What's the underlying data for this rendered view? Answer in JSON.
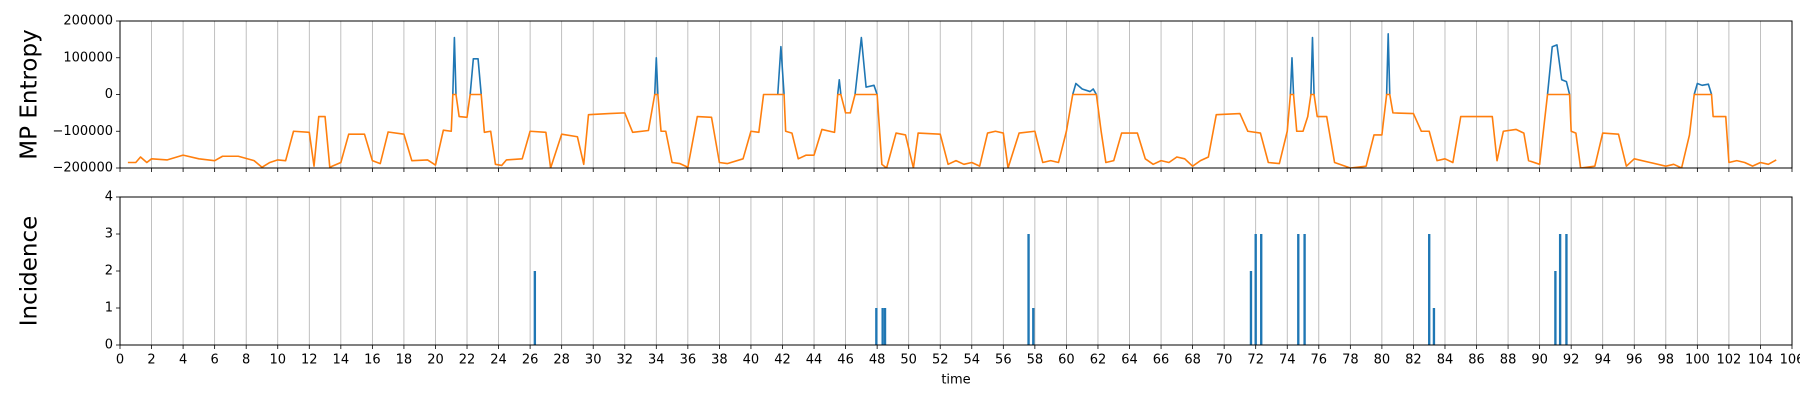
{
  "chart_data": [
    {
      "type": "line",
      "ylabel": "MP Entropy",
      "grid": "x",
      "xlim": [
        0,
        106
      ],
      "xticks": [
        0,
        2,
        4,
        6,
        8,
        10,
        12,
        14,
        16,
        18,
        20,
        22,
        24,
        26,
        28,
        30,
        32,
        34,
        36,
        38,
        40,
        42,
        44,
        46,
        48,
        50,
        52,
        54,
        56,
        58,
        60,
        62,
        64,
        66,
        68,
        70,
        72,
        74,
        76,
        78,
        80,
        82,
        84,
        86,
        88,
        90,
        92,
        94,
        96,
        98,
        100,
        102,
        104,
        106
      ],
      "ylim": [
        -200000,
        200000
      ],
      "yticks": [
        {
          "value": -200000,
          "label": "−200000"
        },
        {
          "value": -100000,
          "label": "−100000"
        },
        0,
        100000,
        200000
      ],
      "x": [
        0.5,
        1,
        1.3,
        1.7,
        2,
        3,
        4,
        5,
        6,
        6.5,
        7.5,
        8.5,
        9,
        9.5,
        10,
        10.5,
        11,
        12,
        12.3,
        12.6,
        13,
        13.3,
        14,
        14.5,
        15.5,
        16,
        16.5,
        17,
        18,
        18.5,
        19.5,
        20,
        20.5,
        21,
        21.1,
        21.2,
        21.3,
        21.5,
        22,
        22.2,
        22.4,
        22.7,
        22.9,
        23.1,
        23.5,
        23.8,
        24.2,
        24.5,
        25.5,
        26,
        27,
        27.3,
        28,
        29,
        29.4,
        29.7,
        31,
        32,
        32.5,
        33.5,
        33.9,
        34,
        34.1,
        34.3,
        34.6,
        35,
        35.5,
        36,
        36.6,
        37.5,
        38,
        38.5,
        39.5,
        40,
        40.5,
        40.8,
        41.5,
        41.7,
        41.9,
        42.1,
        42.2,
        42.6,
        43,
        43.5,
        44,
        44.5,
        45.3,
        45.5,
        45.6,
        45.7,
        46,
        46.3,
        46.6,
        47,
        47.3,
        47.8,
        48,
        48.3,
        48.6,
        49.2,
        49.8,
        50.3,
        50.6,
        52,
        52.5,
        53,
        53.5,
        54,
        54.5,
        55,
        55.5,
        56,
        56.3,
        57,
        58,
        58.5,
        59,
        59.5,
        60,
        60.4,
        60.6,
        61,
        61.5,
        61.7,
        61.9,
        62.2,
        62.5,
        63,
        63.5,
        64.5,
        65,
        65.5,
        66,
        66.5,
        67,
        67.5,
        68,
        68.5,
        69,
        69.5,
        71,
        71.5,
        72.3,
        72.8,
        73.5,
        74,
        74.2,
        74.3,
        74.4,
        74.6,
        75,
        75.3,
        75.5,
        75.6,
        75.7,
        75.9,
        76.5,
        77,
        78,
        79,
        79.5,
        80,
        80.3,
        80.4,
        80.5,
        80.7,
        82,
        82.5,
        83,
        83.5,
        84,
        84.5,
        85,
        87,
        87.3,
        87.7,
        88.5,
        89,
        89.3,
        90,
        90.5,
        90.8,
        91.1,
        91.4,
        91.7,
        91.9,
        92,
        92.3,
        92.6,
        93.5,
        94,
        95,
        95.5,
        96,
        97,
        98,
        98.5,
        99,
        99.5,
        99.8,
        100,
        100.3,
        100.7,
        100.9,
        101,
        101.8,
        102,
        102.5,
        103,
        103.5,
        104,
        104.5,
        105
      ],
      "series": [
        {
          "color": "#1f77b4",
          "values": [
            null,
            null,
            null,
            null,
            null,
            null,
            null,
            null,
            null,
            null,
            null,
            null,
            null,
            null,
            null,
            null,
            null,
            null,
            null,
            null,
            null,
            null,
            null,
            null,
            null,
            null,
            null,
            null,
            null,
            null,
            null,
            null,
            null,
            null,
            0,
            155000,
            0,
            null,
            null,
            0,
            97000,
            97000,
            0,
            null,
            null,
            null,
            null,
            null,
            null,
            null,
            null,
            null,
            null,
            null,
            null,
            null,
            null,
            null,
            null,
            null,
            0,
            100000,
            0,
            null,
            null,
            null,
            null,
            null,
            null,
            null,
            null,
            null,
            null,
            null,
            null,
            null,
            null,
            0,
            130000,
            0,
            null,
            null,
            null,
            null,
            null,
            null,
            null,
            0,
            40000,
            0,
            null,
            null,
            0,
            155000,
            20000,
            25000,
            0,
            null,
            null,
            null,
            null,
            null,
            null,
            null,
            null,
            null,
            null,
            null,
            null,
            null,
            null,
            null,
            null,
            null,
            null,
            null,
            null,
            null,
            null,
            0,
            30000,
            15000,
            8000,
            15000,
            0,
            null,
            null,
            null,
            null,
            null,
            null,
            null,
            null,
            null,
            null,
            null,
            null,
            null,
            null,
            null,
            null,
            null,
            null,
            null,
            null,
            null,
            0,
            100000,
            0,
            null,
            null,
            null,
            0,
            155000,
            0,
            null,
            null,
            null,
            null,
            null,
            null,
            null,
            0,
            165000,
            0,
            null,
            null,
            null,
            null,
            null,
            null,
            null,
            null,
            null,
            null,
            null,
            null,
            null,
            null,
            null,
            0,
            130000,
            135000,
            40000,
            35000,
            0,
            null,
            null,
            null,
            null,
            null,
            null,
            null,
            null,
            null,
            null,
            null,
            null,
            null,
            0,
            30000,
            25000,
            28000,
            0,
            null,
            null,
            null,
            null,
            null,
            null,
            null,
            null,
            null
          ]
        },
        {
          "color": "#ff7f0e",
          "values": [
            -185000,
            -185000,
            -170000,
            -185000,
            -175000,
            -178000,
            -165000,
            -175000,
            -180000,
            -168000,
            -168000,
            -180000,
            -198000,
            -185000,
            -178000,
            -180000,
            -100000,
            -103000,
            -195000,
            -60000,
            -60000,
            -198000,
            -185000,
            -108000,
            -108000,
            -180000,
            -188000,
            -102000,
            -108000,
            -180000,
            -178000,
            -192000,
            -97000,
            -100000,
            0,
            0,
            0,
            -60000,
            -62000,
            0,
            0,
            0,
            0,
            -103000,
            -100000,
            -190000,
            -193000,
            -178000,
            -175000,
            -100000,
            -103000,
            -200000,
            -108000,
            -115000,
            -190000,
            -55000,
            -52000,
            -50000,
            -103000,
            -98000,
            0,
            0,
            0,
            -100000,
            -100000,
            -185000,
            -188000,
            -198000,
            -60000,
            -62000,
            -185000,
            -188000,
            -175000,
            -100000,
            -103000,
            0,
            0,
            0,
            0,
            0,
            -100000,
            -105000,
            -175000,
            -165000,
            -165000,
            -95000,
            -103000,
            0,
            0,
            0,
            -50000,
            -50000,
            0,
            0,
            0,
            0,
            0,
            -190000,
            -200000,
            -105000,
            -110000,
            -200000,
            -105000,
            -108000,
            -190000,
            -180000,
            -190000,
            -185000,
            -195000,
            -105000,
            -100000,
            -105000,
            -200000,
            -105000,
            -100000,
            -185000,
            -180000,
            -185000,
            -100000,
            0,
            0,
            0,
            0,
            0,
            0,
            -100000,
            -185000,
            -180000,
            -105000,
            -105000,
            -175000,
            -190000,
            -180000,
            -185000,
            -170000,
            -175000,
            -195000,
            -180000,
            -170000,
            -55000,
            -52000,
            -100000,
            -105000,
            -185000,
            -188000,
            -100000,
            0,
            0,
            0,
            -100000,
            -100000,
            -60000,
            0,
            0,
            0,
            -60000,
            -60000,
            -185000,
            -200000,
            -195000,
            -110000,
            -110000,
            0,
            0,
            0,
            -50000,
            -52000,
            -100000,
            -100000,
            -180000,
            -175000,
            -185000,
            -60000,
            -60000,
            -180000,
            -100000,
            -95000,
            -105000,
            -180000,
            -190000,
            0,
            0,
            0,
            0,
            0,
            0,
            -100000,
            -105000,
            -200000,
            -195000,
            -105000,
            -108000,
            -195000,
            -175000,
            -185000,
            -195000,
            -190000,
            -200000,
            -110000,
            0,
            0,
            0,
            0,
            0,
            -60000,
            -60000,
            -185000,
            -180000,
            -185000,
            -195000,
            -185000,
            -190000,
            -178000
          ]
        }
      ]
    },
    {
      "type": "bar",
      "ylabel": "Incidence",
      "xlabel": "time",
      "grid": "x",
      "color": "#1f77b4",
      "xlim": [
        0,
        106
      ],
      "xticks": [
        0,
        2,
        4,
        6,
        8,
        10,
        12,
        14,
        16,
        18,
        20,
        22,
        24,
        26,
        28,
        30,
        32,
        34,
        36,
        38,
        40,
        42,
        44,
        46,
        48,
        50,
        52,
        54,
        56,
        58,
        60,
        62,
        64,
        66,
        68,
        70,
        72,
        74,
        76,
        78,
        80,
        82,
        84,
        86,
        88,
        90,
        92,
        94,
        96,
        98,
        100,
        102,
        104,
        106
      ],
      "ylim": [
        0,
        4
      ],
      "yticks": [
        0,
        1,
        2,
        3,
        4
      ],
      "x": [
        26.3,
        47.95,
        48.35,
        48.5,
        57.6,
        57.9,
        71.7,
        72,
        72.35,
        74.7,
        75.1,
        83,
        83.3,
        91,
        91.3,
        91.7
      ],
      "values": [
        2,
        1,
        1,
        1,
        3,
        1,
        2,
        3,
        3,
        3,
        3,
        3,
        1,
        2,
        3,
        3
      ]
    }
  ]
}
